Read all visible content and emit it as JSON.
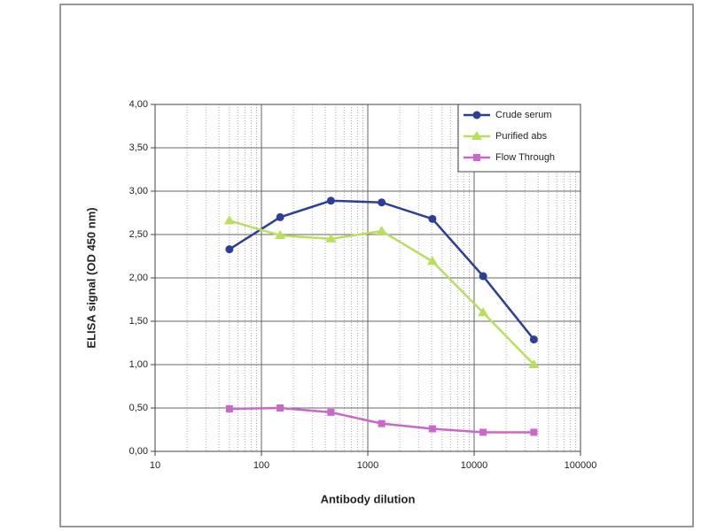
{
  "chart_data": {
    "type": "line",
    "x_label": "Antibody dilution",
    "y_label": "ELISA signal (OD 450 nm)",
    "x": [
      50,
      150,
      450,
      1350,
      4050,
      12150,
      36450
    ],
    "series": [
      {
        "name": "Crude serum",
        "color": "#2b3f9a",
        "marker": "circle",
        "values": [
          2.33,
          2.7,
          2.89,
          2.87,
          2.68,
          2.02,
          1.29
        ]
      },
      {
        "name": "Purified abs",
        "color": "#b8e05a",
        "marker": "triangle",
        "values": [
          2.66,
          2.49,
          2.45,
          2.54,
          2.19,
          1.6,
          1.0
        ]
      },
      {
        "name": "Flow Through",
        "color": "#cc66cc",
        "marker": "square",
        "values": [
          0.49,
          0.5,
          0.45,
          0.32,
          0.26,
          0.22,
          0.22
        ]
      }
    ],
    "xscale": "log",
    "xlim": [
      10,
      100000
    ],
    "xticks": [
      10,
      100,
      1000,
      10000,
      100000
    ],
    "ylim": [
      0,
      4
    ],
    "yticks": [
      {
        "value": 0,
        "label": "0,00"
      },
      {
        "value": 0.5,
        "label": "0,50"
      },
      {
        "value": 1,
        "label": "1,00"
      },
      {
        "value": 1.5,
        "label": "1,50"
      },
      {
        "value": 2,
        "label": "2,00"
      },
      {
        "value": 2.5,
        "label": "2,50"
      },
      {
        "value": 3,
        "label": "3,00"
      },
      {
        "value": 3.5,
        "label": "3,50"
      },
      {
        "value": 4,
        "label": "4,00"
      }
    ],
    "grid": true,
    "legend": "upper right"
  }
}
